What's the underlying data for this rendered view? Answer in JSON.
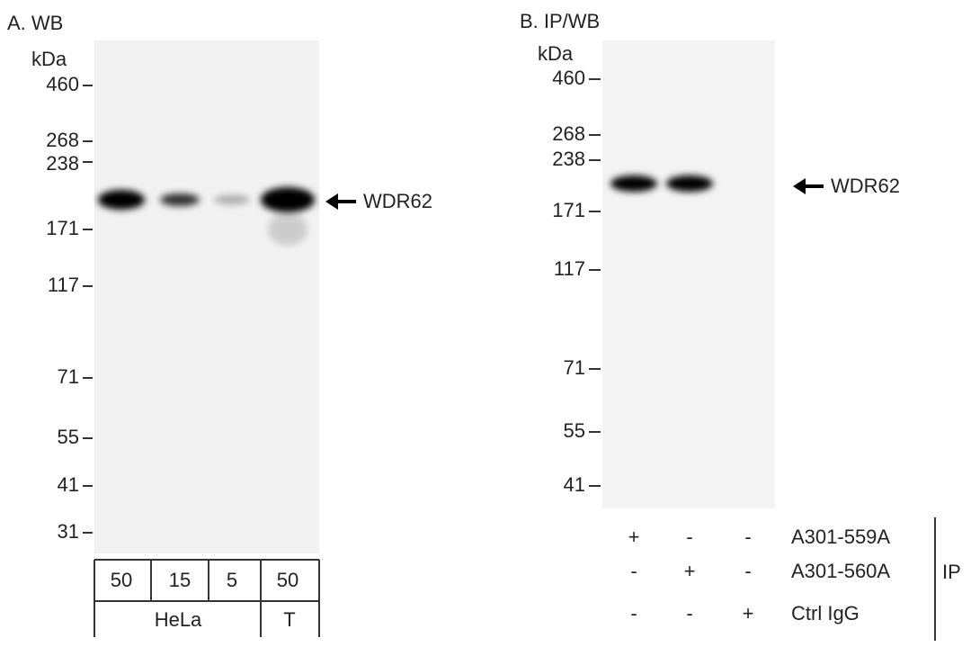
{
  "panels": [
    {
      "title": "A. WB",
      "unit": "kDa",
      "markers": [
        "460",
        "268",
        "238",
        "171",
        "117",
        "71",
        "55",
        "41",
        "31"
      ],
      "target": "WDR62",
      "lane_rows": [
        {
          "labels": [
            "50",
            "15",
            "5",
            "50"
          ]
        },
        {
          "labels": [
            "HeLa",
            "T"
          ]
        }
      ]
    },
    {
      "title": "B. IP/WB",
      "unit": "kDa",
      "markers": [
        "460",
        "268",
        "238",
        "171",
        "117",
        "71",
        "55",
        "41"
      ],
      "target": "WDR62",
      "lane_rows": [
        {
          "signs": [
            "+",
            "-",
            "-"
          ],
          "label": "A301-559A"
        },
        {
          "signs": [
            "-",
            "+",
            "-"
          ],
          "label": "A301-560A"
        },
        {
          "signs": [
            "-",
            "-",
            "+"
          ],
          "label": "Ctrl IgG"
        }
      ],
      "group_label": "IP"
    }
  ]
}
